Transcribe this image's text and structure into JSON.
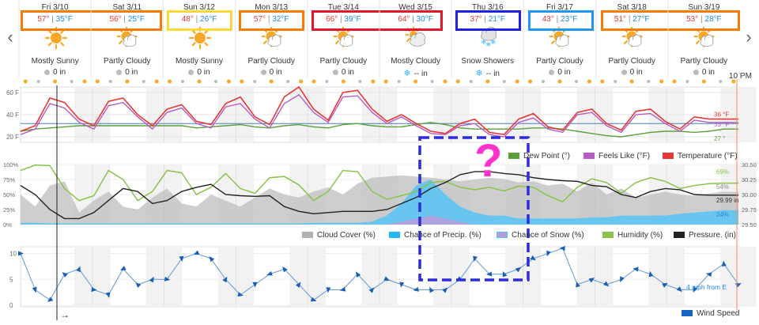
{
  "nav": {
    "prev": "‹",
    "next": "›"
  },
  "time_label": "10 PM",
  "arrow_label": "→",
  "days": [
    {
      "name": "Fri 3/10",
      "hi": "57°",
      "lo": "35°F",
      "icon": "sun-icon",
      "condition": "Mostly Sunny",
      "precip": "0 in",
      "snow": false
    },
    {
      "name": "Sat 3/11",
      "hi": "56°",
      "lo": "25°F",
      "icon": "partly-cloudy-icon",
      "condition": "Partly Cloudy",
      "precip": "0 in",
      "snow": false
    },
    {
      "name": "Sun 3/12",
      "hi": "48°",
      "lo": "26°F",
      "icon": "sun-icon",
      "condition": "Mostly Sunny",
      "precip": "0 in",
      "snow": false
    },
    {
      "name": "Mon 3/13",
      "hi": "57°",
      "lo": "32°F",
      "icon": "partly-cloudy-icon",
      "condition": "Partly Cloudy",
      "precip": "0 in",
      "snow": false
    },
    {
      "name": "Tue 3/14",
      "hi": "66°",
      "lo": "39°F",
      "icon": "partly-cloudy-icon",
      "condition": "Partly Cloudy",
      "precip": "0 in",
      "snow": false
    },
    {
      "name": "Wed 3/15",
      "hi": "64°",
      "lo": "30°F",
      "icon": "mostly-cloudy-icon",
      "condition": "Mostly Cloudy",
      "precip": "-- in",
      "snow": true
    },
    {
      "name": "Thu 3/16",
      "hi": "37°",
      "lo": "21°F",
      "icon": "snow-showers-icon",
      "condition": "Snow Showers",
      "precip": "-- in",
      "snow": true
    },
    {
      "name": "Fri 3/17",
      "hi": "43°",
      "lo": "23°F",
      "icon": "partly-cloudy-icon",
      "condition": "Partly Cloudy",
      "precip": "0 in",
      "snow": false
    },
    {
      "name": "Sat 3/18",
      "hi": "51°",
      "lo": "27°F",
      "icon": "partly-cloudy-icon",
      "condition": "Partly Cloudy",
      "precip": "0 in",
      "snow": false
    },
    {
      "name": "Sun 3/19",
      "hi": "53°",
      "lo": "28°F",
      "icon": "partly-cloudy-icon",
      "condition": "Partly Cloudy",
      "precip": "0 in",
      "snow": false
    }
  ],
  "colors": {
    "temperature": "#e53935",
    "feels_like": "#b65cc2",
    "dew_point": "#5aa03a",
    "humidity": "#8bc34a",
    "pressure": "#222222",
    "cloud_cover": "#c8c8c8",
    "chance_precip": "#4fc3f7",
    "chance_snow": "#b39ddb",
    "wind": "#6fa0d8",
    "sun": "#f7a826",
    "freeze_line": "#4a7fb5",
    "annotation_box": "#2b2bdf",
    "question_mark": "#ff33cc",
    "current_time_line": "#ff8a50",
    "highlight_orange": "#f57c00",
    "highlight_yellow": "#fdd835",
    "highlight_red": "#e0182d",
    "highlight_blue": "#2020e0",
    "highlight_lightblue": "#2196f3"
  },
  "annotation": {
    "text": "?"
  },
  "chart_data": [
    {
      "type": "line",
      "ylabel": "",
      "ylim": [
        15,
        65
      ],
      "yticks": [
        "60 F",
        "40 F",
        "20 F"
      ],
      "freeze_line": 32,
      "hours_per_day": 24,
      "series": [
        {
          "name": "Dew Point (°)",
          "values": [
            25,
            27,
            28,
            29,
            30,
            30,
            30,
            30,
            30,
            30,
            30,
            30,
            28,
            29,
            30,
            31,
            29,
            28,
            30,
            31,
            29,
            28,
            31,
            32,
            30,
            29,
            29,
            31,
            33,
            31,
            28,
            27,
            27,
            27,
            27,
            28,
            28,
            27,
            25,
            23,
            21,
            20,
            22,
            24,
            25,
            25,
            24,
            25,
            27,
            27
          ],
          "end_label": "27 °"
        },
        {
          "name": "Feels Like (°F)",
          "values": [
            22,
            27,
            50,
            46,
            33,
            27,
            48,
            51,
            38,
            27,
            42,
            46,
            32,
            28,
            47,
            50,
            36,
            28,
            50,
            58,
            42,
            33,
            56,
            57,
            42,
            32,
            38,
            30,
            23,
            22,
            30,
            32,
            22,
            20,
            33,
            37,
            27,
            24,
            40,
            42,
            30,
            24,
            40,
            41,
            32,
            25,
            35,
            33,
            33,
            33
          ],
          "end_label": "33 °F"
        },
        {
          "name": "Temperature (°F)",
          "values": [
            25,
            30,
            55,
            51,
            36,
            30,
            52,
            55,
            40,
            30,
            45,
            49,
            34,
            31,
            50,
            56,
            38,
            31,
            56,
            65,
            45,
            35,
            60,
            62,
            45,
            34,
            40,
            32,
            25,
            23,
            32,
            36,
            24,
            22,
            36,
            41,
            29,
            26,
            42,
            45,
            32,
            26,
            43,
            45,
            34,
            27,
            38,
            36,
            36,
            36
          ],
          "end_label": "36 °F"
        }
      ]
    },
    {
      "type": "area",
      "ylim": [
        0,
        100
      ],
      "yticks": [
        "100%",
        "75%",
        "50%",
        "25%",
        "0%"
      ],
      "y2lim": [
        29.5,
        30.5
      ],
      "y2ticks": [
        "30.50",
        "30.25",
        "30.00",
        "29.75",
        "29.50"
      ],
      "series": [
        {
          "name": "Cloud Cover (%)",
          "values": [
            50,
            30,
            65,
            72,
            20,
            40,
            55,
            30,
            25,
            45,
            60,
            35,
            30,
            50,
            40,
            30,
            45,
            60,
            50,
            45,
            55,
            62,
            50,
            68,
            78,
            80,
            82,
            80,
            78,
            75,
            72,
            75,
            78,
            76,
            70,
            72,
            65,
            68,
            55,
            70,
            50,
            60,
            45,
            50,
            55,
            50,
            48,
            52,
            55,
            54
          ],
          "end_label": "54%"
        },
        {
          "name": "Chance of Precip. (%)",
          "values": [
            3,
            3,
            2,
            2,
            2,
            2,
            2,
            2,
            2,
            2,
            2,
            2,
            2,
            2,
            2,
            2,
            2,
            2,
            2,
            2,
            3,
            3,
            3,
            3,
            5,
            15,
            35,
            65,
            75,
            50,
            30,
            20,
            15,
            15,
            10,
            10,
            10,
            10,
            10,
            12,
            12,
            15,
            15,
            15,
            15,
            18,
            20,
            22,
            24,
            24
          ],
          "end_label": "24%"
        },
        {
          "name": "Chance of Snow (%)",
          "values": [
            0,
            0,
            0,
            0,
            0,
            0,
            0,
            0,
            0,
            0,
            0,
            0,
            0,
            0,
            0,
            0,
            0,
            0,
            0,
            0,
            0,
            0,
            0,
            0,
            0,
            0,
            5,
            10,
            15,
            10,
            5,
            0,
            0,
            0,
            0,
            0,
            0,
            0,
            0,
            0,
            0,
            0,
            0,
            0,
            0,
            0,
            0,
            0,
            0,
            0
          ]
        },
        {
          "name": "Humidity (%)",
          "values": [
            90,
            99,
            98,
            60,
            40,
            48,
            90,
            75,
            40,
            55,
            90,
            86,
            50,
            62,
            85,
            60,
            52,
            78,
            80,
            66,
            40,
            55,
            90,
            88,
            55,
            42,
            48,
            55,
            70,
            72,
            62,
            58,
            62,
            56,
            64,
            62,
            48,
            38,
            62,
            76,
            70,
            52,
            70,
            78,
            72,
            60,
            65,
            68,
            69,
            69
          ],
          "end_label": "69%"
        },
        {
          "name": "Pressure. (in)",
          "values": [
            30.15,
            30.0,
            29.75,
            29.6,
            29.6,
            29.7,
            29.9,
            30.1,
            30.05,
            29.85,
            29.9,
            30.05,
            30.12,
            30.17,
            30.0,
            29.98,
            29.97,
            29.98,
            29.8,
            29.72,
            29.68,
            29.7,
            29.72,
            29.72,
            29.72,
            29.75,
            29.85,
            29.95,
            30.1,
            30.2,
            30.33,
            30.38,
            30.38,
            30.35,
            30.33,
            30.28,
            30.25,
            30.23,
            30.22,
            30.15,
            30.13,
            30.0,
            29.95,
            30.05,
            30.1,
            30.08,
            30.0,
            29.99,
            29.99,
            29.99
          ],
          "end_label": "29.99 in"
        }
      ]
    },
    {
      "type": "line",
      "ylim": [
        0,
        11
      ],
      "yticks": [
        "10",
        "5",
        "0"
      ],
      "series": [
        {
          "name": "Wind Speed",
          "values": [
            10,
            3,
            1,
            6,
            7,
            3,
            2,
            7,
            4,
            5,
            5,
            9,
            10,
            9,
            5,
            2,
            4,
            6,
            7,
            4,
            1,
            3,
            3,
            6,
            3,
            5,
            4,
            3,
            3,
            3,
            5,
            9,
            6,
            6,
            7,
            9,
            10,
            11,
            4,
            5,
            4,
            5,
            7,
            6,
            4,
            3,
            3,
            6,
            8,
            4
          ]
        }
      ],
      "annotation": "4 mph from E"
    }
  ]
}
